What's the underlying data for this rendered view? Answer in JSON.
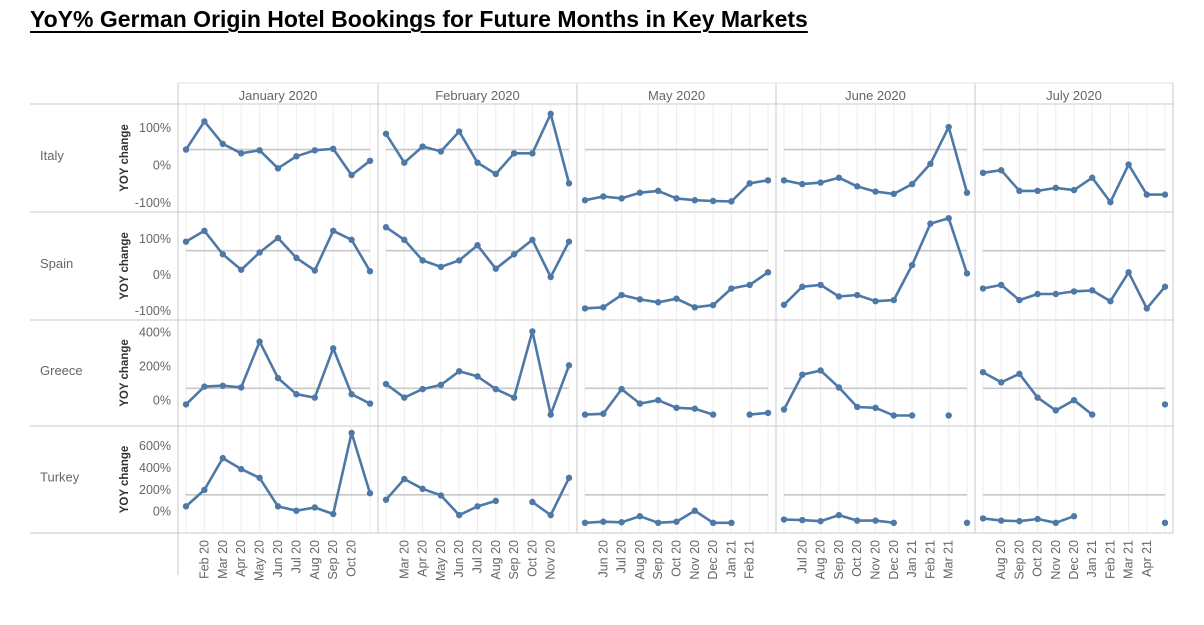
{
  "title": "YoY% German Origin Hotel Bookings for Future Months in Key Markets",
  "colors": {
    "line": "#4e79a7",
    "reference": "#c8c8c8",
    "grid": "#ececec",
    "border": "#c8c8c8",
    "text": "#666666"
  },
  "chart_data": {
    "type": "line",
    "y_axis_label": "YOY change",
    "columns": [
      {
        "title": "January 2020",
        "x_ticks": [
          "Feb 20",
          "Mar 20",
          "Apr 20",
          "May 20",
          "Jun 20",
          "Jul 20",
          "Aug 20",
          "Sep 20",
          "Oct 20"
        ]
      },
      {
        "title": "February 2020",
        "x_ticks": [
          "Mar 20",
          "Apr 20",
          "May 20",
          "Jun 20",
          "Jul 20",
          "Aug 20",
          "Sep 20",
          "Oct 20",
          "Nov 20"
        ]
      },
      {
        "title": "May 2020",
        "x_ticks": [
          "Jun 20",
          "Jul 20",
          "Aug 20",
          "Sep 20",
          "Oct 20",
          "Nov 20",
          "Dec 20",
          "Jan 21",
          "Feb 21"
        ]
      },
      {
        "title": "June 2020",
        "x_ticks": [
          "Jul 20",
          "Aug 20",
          "Sep 20",
          "Oct 20",
          "Nov 20",
          "Dec 20",
          "Jan 21",
          "Feb 21",
          "Mar 21"
        ]
      },
      {
        "title": "July 2020",
        "x_ticks": [
          "Aug 20",
          "Sep 20",
          "Oct 20",
          "Nov 20",
          "Dec 20",
          "Jan 21",
          "Feb 21",
          "Mar 21",
          "Apr 21"
        ]
      }
    ],
    "rows": [
      {
        "name": "Italy",
        "y_ticks": [
          {
            "value": 100,
            "label": "100%"
          },
          {
            "value": 0,
            "label": "0%"
          },
          {
            "value": -100,
            "label": "-100%"
          }
        ],
        "ylim": [
          -105,
          140
        ],
        "reference": 40,
        "series": [
          [
            40,
            115,
            55,
            30,
            38,
            -10,
            22,
            38,
            42,
            -28,
            10
          ],
          [
            82,
            5,
            48,
            35,
            88,
            5,
            -25,
            30,
            30,
            135,
            -50
          ],
          [
            -95,
            -85,
            -90,
            -75,
            -70,
            -90,
            -95,
            -97,
            -98,
            -50,
            -42
          ],
          [
            -42,
            -52,
            -48,
            -35,
            -58,
            -72,
            -78,
            -52,
            2,
            100,
            -75
          ],
          [
            -22,
            -15,
            -70,
            -70,
            -62,
            -68,
            -35,
            -100,
            0,
            -80,
            -80
          ]
        ]
      },
      {
        "name": "Spain",
        "y_ticks": [
          {
            "value": 100,
            "label": "100%"
          },
          {
            "value": 0,
            "label": "0%"
          },
          {
            "value": -100,
            "label": "-100%"
          }
        ],
        "ylim": [
          -105,
          150
        ],
        "reference": 65,
        "series": [
          [
            90,
            120,
            55,
            12,
            60,
            100,
            45,
            10,
            120,
            95,
            8
          ],
          [
            130,
            95,
            38,
            20,
            38,
            80,
            15,
            55,
            95,
            -8,
            90
          ],
          [
            -95,
            -92,
            -58,
            -70,
            -78,
            -68,
            -92,
            -86,
            -40,
            -30,
            5
          ],
          [
            -85,
            -35,
            -30,
            -62,
            -58,
            -75,
            -72,
            25,
            140,
            155,
            2
          ],
          [
            -40,
            -30,
            -72,
            -55,
            -55,
            -48,
            -45,
            -75,
            5,
            -95,
            -35
          ]
        ]
      },
      {
        "name": "Greece",
        "y_ticks": [
          {
            "value": 400,
            "label": "400%"
          },
          {
            "value": 200,
            "label": "200%"
          },
          {
            "value": 0,
            "label": "0%"
          }
        ],
        "ylim": [
          -110,
          420
        ],
        "reference": 65,
        "series": [
          [
            -30,
            75,
            80,
            70,
            340,
            125,
            30,
            10,
            300,
            30,
            -25
          ],
          [
            90,
            10,
            60,
            85,
            165,
            135,
            60,
            10,
            400,
            -90,
            200
          ],
          [
            -90,
            -85,
            60,
            -25,
            -5,
            -50,
            -55,
            -90,
            null,
            -90,
            -80
          ],
          [
            -60,
            145,
            170,
            70,
            -45,
            -50,
            -95,
            -95,
            null,
            -95,
            null
          ],
          [
            160,
            100,
            150,
            10,
            -65,
            -5,
            -90,
            null,
            null,
            null,
            -30
          ]
        ]
      },
      {
        "name": "Turkey",
        "y_ticks": [
          {
            "value": 600,
            "label": "600%"
          },
          {
            "value": 400,
            "label": "400%"
          },
          {
            "value": 200,
            "label": "200%"
          },
          {
            "value": 0,
            "label": "0%"
          }
        ],
        "ylim": [
          -130,
          700
        ],
        "reference": 145,
        "series": [
          [
            40,
            190,
            480,
            380,
            300,
            40,
            0,
            30,
            -30,
            710,
            160
          ],
          [
            100,
            290,
            200,
            140,
            -40,
            40,
            90,
            null,
            80,
            -40,
            300
          ],
          [
            -110,
            -100,
            -105,
            -50,
            -110,
            -100,
            0,
            -110,
            -110,
            null,
            null
          ],
          [
            -80,
            -85,
            -95,
            -40,
            -90,
            -90,
            -110,
            null,
            null,
            null,
            -110
          ],
          [
            -70,
            -90,
            -95,
            -75,
            -110,
            -50,
            null,
            null,
            null,
            null,
            -110
          ]
        ]
      }
    ]
  }
}
